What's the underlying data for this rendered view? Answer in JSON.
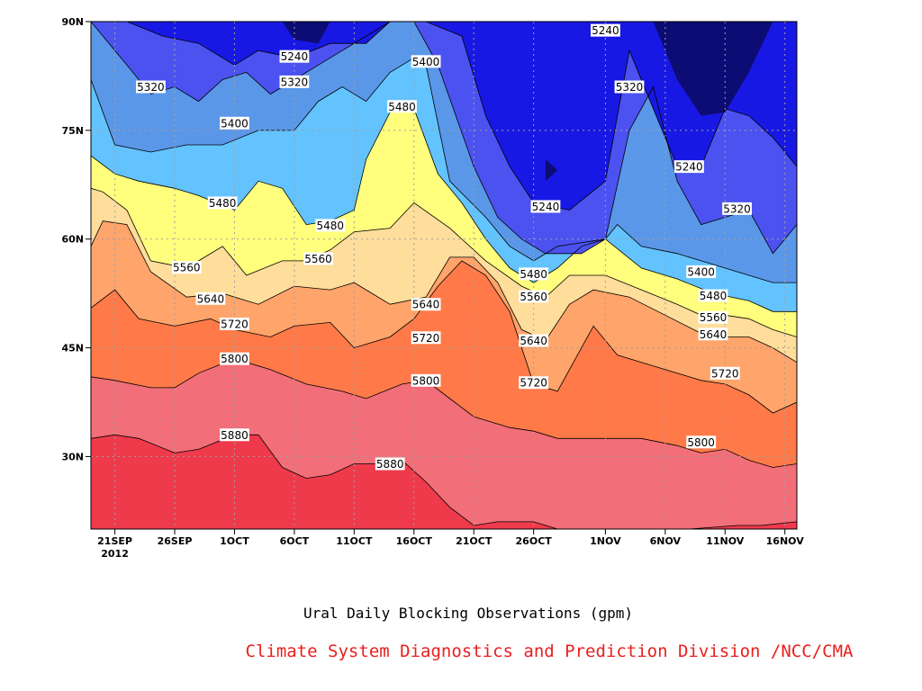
{
  "caption": {
    "title": "Ural Daily Blocking Observations (gpm)",
    "credit": "Climate System Diagnostics and Prediction Division /NCC/CMA"
  },
  "colors": {
    "credit_text": "#e8201e",
    "fills": [
      "#ef3a4c",
      "#f26e78",
      "#ff7a48",
      "#ffa46a",
      "#ffdd9b",
      "#ffff7d",
      "#63c3ff",
      "#5a97e8",
      "#4c52f0",
      "#1818e4",
      "#0c0c74"
    ],
    "contour_line": "#000000",
    "grid": "#a0a0a0"
  },
  "chart_data": {
    "type": "contour",
    "title": "Ural Daily Blocking Observations (gpm)",
    "xlabel": "",
    "ylabel": "",
    "xlim": [
      "2012-09-19",
      "2012-11-17"
    ],
    "ylim": [
      20,
      90
    ],
    "x_ticks": [
      {
        "label": "21SEP",
        "sublabel": "2012",
        "date": "2012-09-21"
      },
      {
        "label": "26SEP",
        "date": "2012-09-26"
      },
      {
        "label": "1OCT",
        "date": "2012-10-01"
      },
      {
        "label": "6OCT",
        "date": "2012-10-06"
      },
      {
        "label": "11OCT",
        "date": "2012-10-11"
      },
      {
        "label": "16OCT",
        "date": "2012-10-16"
      },
      {
        "label": "21OCT",
        "date": "2012-10-21"
      },
      {
        "label": "26OCT",
        "date": "2012-10-26"
      },
      {
        "label": "1NOV",
        "date": "2012-11-01"
      },
      {
        "label": "6NOV",
        "date": "2012-11-06"
      },
      {
        "label": "11NOV",
        "date": "2012-11-11"
      },
      {
        "label": "16NOV",
        "date": "2012-11-16"
      }
    ],
    "y_ticks": [
      {
        "label": "30N",
        "value": 30
      },
      {
        "label": "45N",
        "value": 45
      },
      {
        "label": "60N",
        "value": 60
      },
      {
        "label": "75N",
        "value": 75
      },
      {
        "label": "90N",
        "value": 90
      }
    ],
    "grid": true,
    "contour_levels": [
      5240,
      5320,
      5400,
      5480,
      5560,
      5640,
      5720,
      5800,
      5880
    ],
    "contour_label_text": [
      "5880",
      "5800",
      "5720",
      "5640",
      "5560",
      "5480",
      "5400",
      "5320",
      "5240"
    ],
    "contours": [
      {
        "level": 5880,
        "x": [
          "2012-09-19",
          "2012-09-21",
          "2012-09-23",
          "2012-09-26",
          "2012-09-28",
          "2012-10-01",
          "2012-10-03",
          "2012-10-05",
          "2012-10-07",
          "2012-10-09",
          "2012-10-11",
          "2012-10-13",
          "2012-10-15",
          "2012-10-17",
          "2012-10-19",
          "2012-10-21",
          "2012-10-23",
          "2012-10-26",
          "2012-10-28",
          "2012-11-01",
          "2012-11-06",
          "2012-11-08",
          "2012-11-12",
          "2012-11-14",
          "2012-11-17"
        ],
        "y": [
          32.5,
          33,
          32.5,
          30.5,
          31,
          33,
          33,
          28.5,
          27,
          27.5,
          29,
          29,
          29.5,
          26.5,
          23,
          20.5,
          21,
          21,
          20,
          20,
          20,
          20,
          20.5,
          20.5,
          21
        ]
      },
      {
        "level": 5800,
        "x": [
          "2012-09-19",
          "2012-09-21",
          "2012-09-24",
          "2012-09-26",
          "2012-09-28",
          "2012-10-01",
          "2012-10-04",
          "2012-10-07",
          "2012-10-10",
          "2012-10-12",
          "2012-10-15",
          "2012-10-17",
          "2012-10-19",
          "2012-10-21",
          "2012-10-24",
          "2012-10-26",
          "2012-10-28",
          "2012-11-01",
          "2012-11-04",
          "2012-11-07",
          "2012-11-09",
          "2012-11-11",
          "2012-11-13",
          "2012-11-15",
          "2012-11-17"
        ],
        "y": [
          41,
          40.5,
          39.5,
          39.5,
          41.5,
          43.5,
          42,
          40,
          39,
          38,
          40,
          40.5,
          38,
          35.5,
          34,
          33.5,
          32.5,
          32.5,
          32.5,
          31.5,
          30.5,
          31,
          29.5,
          28.5,
          29
        ]
      },
      {
        "level": 5720,
        "x": [
          "2012-09-19",
          "2012-09-21",
          "2012-09-23",
          "2012-09-26",
          "2012-09-29",
          "2012-10-01",
          "2012-10-04",
          "2012-10-06",
          "2012-10-09",
          "2012-10-11",
          "2012-10-14",
          "2012-10-16",
          "2012-10-18",
          "2012-10-20",
          "2012-10-22",
          "2012-10-24",
          "2012-10-26",
          "2012-10-28",
          "2012-10-31",
          "2012-11-02",
          "2012-11-06",
          "2012-11-09",
          "2012-11-11",
          "2012-11-13",
          "2012-11-15",
          "2012-11-17"
        ],
        "y": [
          50.5,
          53,
          49,
          48,
          49,
          47.5,
          46.5,
          48,
          48.5,
          45,
          46.5,
          49,
          53.5,
          57,
          55,
          50,
          40,
          39,
          48,
          44,
          42,
          40.5,
          40,
          38.5,
          36,
          37.5
        ]
      },
      {
        "level": 5640,
        "x": [
          "2012-09-19",
          "2012-09-20",
          "2012-09-22",
          "2012-09-24",
          "2012-09-27",
          "2012-09-30",
          "2012-10-03",
          "2012-10-06",
          "2012-10-09",
          "2012-10-11",
          "2012-10-14",
          "2012-10-17",
          "2012-10-19",
          "2012-10-21",
          "2012-10-23",
          "2012-10-25",
          "2012-10-27",
          "2012-10-29",
          "2012-10-31",
          "2012-11-03",
          "2012-11-06",
          "2012-11-09",
          "2012-11-11",
          "2012-11-13",
          "2012-11-15",
          "2012-11-17"
        ],
        "y": [
          59,
          62.5,
          62,
          55.5,
          52,
          52.5,
          51,
          53.5,
          53,
          54,
          51,
          52,
          57.5,
          57.5,
          54,
          47.5,
          46,
          51,
          53,
          52,
          49.5,
          47,
          46.5,
          46.5,
          45,
          43
        ]
      },
      {
        "level": 5560,
        "x": [
          "2012-09-19",
          "2012-09-20",
          "2012-09-22",
          "2012-09-24",
          "2012-09-27",
          "2012-09-30",
          "2012-10-02",
          "2012-10-05",
          "2012-10-07",
          "2012-10-09",
          "2012-10-11",
          "2012-10-14",
          "2012-10-16",
          "2012-10-19",
          "2012-10-22",
          "2012-10-25",
          "2012-10-27",
          "2012-10-29",
          "2012-11-01",
          "2012-11-04",
          "2012-11-07",
          "2012-11-09",
          "2012-11-11",
          "2012-11-13",
          "2012-11-15",
          "2012-11-17"
        ],
        "y": [
          67,
          66.5,
          64,
          57,
          56,
          59,
          55,
          57,
          57,
          58.5,
          61,
          61.5,
          65,
          61.5,
          57,
          53.5,
          52,
          55,
          55,
          53,
          51,
          49.5,
          49.5,
          49,
          47.5,
          46.5
        ]
      },
      {
        "level": 5480,
        "x": [
          "2012-09-19",
          "2012-09-21",
          "2012-09-23",
          "2012-09-26",
          "2012-09-28",
          "2012-10-01",
          "2012-10-03",
          "2012-10-05",
          "2012-10-07",
          "2012-10-09",
          "2012-10-11",
          "2012-10-12",
          "2012-10-14",
          "2012-10-16",
          "2012-10-18",
          "2012-10-20",
          "2012-10-22",
          "2012-10-24",
          "2012-10-26",
          "2012-10-28",
          "2012-10-30",
          "2012-11-01",
          "2012-11-04",
          "2012-11-07",
          "2012-11-10",
          "2012-11-13",
          "2012-11-15",
          "2012-11-17"
        ],
        "y": [
          71.5,
          69,
          68,
          67,
          66,
          64,
          68,
          67,
          62,
          62.5,
          64,
          71,
          77.5,
          78,
          69,
          65,
          60,
          56,
          54,
          56,
          59,
          60,
          56,
          54.5,
          52.5,
          51.5,
          50,
          50
        ]
      },
      {
        "level": 5400,
        "x": [
          "2012-09-19",
          "2012-09-21",
          "2012-09-24",
          "2012-09-27",
          "2012-09-30",
          "2012-10-03",
          "2012-10-06",
          "2012-10-08",
          "2012-10-10",
          "2012-10-12",
          "2012-10-14",
          "2012-10-16",
          "2012-10-17",
          "2012-10-19",
          "2012-10-22",
          "2012-10-24",
          "2012-10-26",
          "2012-10-28",
          "2012-11-01",
          "2012-11-02",
          "2012-11-04",
          "2012-11-07",
          "2012-11-10",
          "2012-11-12",
          "2012-11-15",
          "2012-11-17"
        ],
        "y": [
          82,
          73,
          72,
          73,
          73,
          75,
          75,
          79,
          81,
          79,
          83,
          85,
          84,
          68,
          63,
          59,
          57,
          59,
          60,
          62,
          59,
          58,
          56.5,
          55.5,
          54,
          54
        ]
      },
      {
        "level": 5320,
        "x": [
          "2012-09-19",
          "2012-09-20",
          "2012-09-22",
          "2012-09-24",
          "2012-09-26",
          "2012-09-28",
          "2012-09-30",
          "2012-10-02",
          "2012-10-04",
          "2012-10-06",
          "2012-10-08",
          "2012-10-10",
          "2012-10-12",
          "2012-10-14",
          "2012-10-16",
          "2012-10-18",
          "2012-10-21",
          "2012-10-23",
          "2012-10-25",
          "2012-10-27",
          "2012-10-30",
          "2012-11-01",
          "2012-11-03",
          "2012-11-05",
          "2012-11-07",
          "2012-11-09",
          "2012-11-11",
          "2012-11-13",
          "2012-11-15",
          "2012-11-17"
        ],
        "y": [
          90,
          88,
          84,
          80,
          81,
          79,
          82,
          83,
          80,
          82,
          84,
          86,
          88,
          90,
          90,
          84,
          70,
          63,
          60,
          58,
          58,
          60,
          75,
          81,
          68,
          62,
          63,
          64,
          58,
          62
        ]
      },
      {
        "level": 5240,
        "x": [
          "2012-09-22",
          "2012-09-25",
          "2012-09-28",
          "2012-10-01",
          "2012-10-03",
          "2012-10-06",
          "2012-10-09",
          "2012-10-12",
          "2012-10-14",
          "2012-10-17",
          "2012-10-20",
          "2012-10-22",
          "2012-10-24",
          "2012-10-26",
          "2012-10-29",
          "2012-11-01",
          "2012-11-03",
          "2012-11-05",
          "2012-11-07",
          "2012-11-09",
          "2012-11-11",
          "2012-11-13",
          "2012-11-15",
          "2012-11-17"
        ],
        "y": [
          90,
          88,
          87,
          84,
          86,
          85,
          87,
          87,
          90,
          90,
          88,
          77,
          70,
          65,
          64,
          68,
          86,
          78,
          70,
          70,
          78,
          77,
          74,
          70
        ]
      }
    ],
    "inline_labels": [
      "5880",
      "5880",
      "5800",
      "5800",
      "5800",
      "5720",
      "5720",
      "5720",
      "5720",
      "5640",
      "5640",
      "5640",
      "5640",
      "5560",
      "5560",
      "5560",
      "5560",
      "5480",
      "5480",
      "5480",
      "5480",
      "5480",
      "5400",
      "5400",
      "5400",
      "5320",
      "5320",
      "5320",
      "5320",
      "5240",
      "5240",
      "5240",
      "5240"
    ]
  }
}
